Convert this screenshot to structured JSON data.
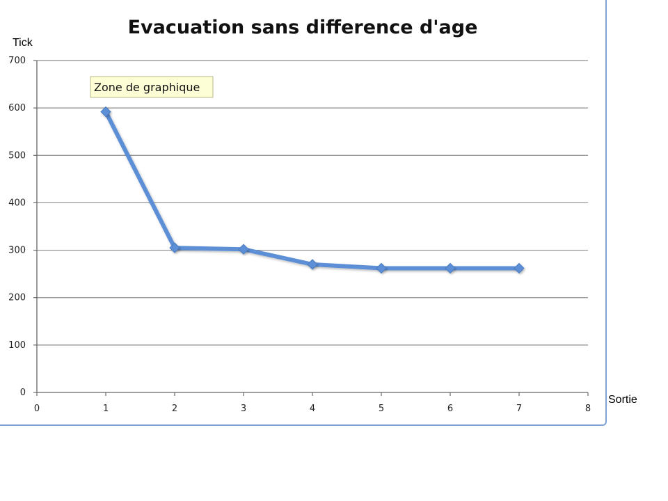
{
  "chart_data": {
    "type": "line",
    "title": "Evacuation sans difference d'age",
    "xlabel": "Sortie",
    "ylabel": "Tick",
    "x": [
      1,
      2,
      3,
      4,
      5,
      6,
      7
    ],
    "series": [
      {
        "values": [
          592,
          305,
          302,
          270,
          262,
          262,
          262
        ]
      }
    ],
    "xlim": [
      0,
      8
    ],
    "ylim": [
      0,
      700
    ],
    "xticks": [
      "0",
      "1",
      "2",
      "3",
      "4",
      "5",
      "6",
      "7",
      "8"
    ],
    "yticks": [
      "0",
      "100",
      "200",
      "300",
      "400",
      "500",
      "600",
      "700"
    ],
    "grid": "horizontal",
    "series_color": "#5b8fd6",
    "tooltip": "Zone de graphique"
  }
}
